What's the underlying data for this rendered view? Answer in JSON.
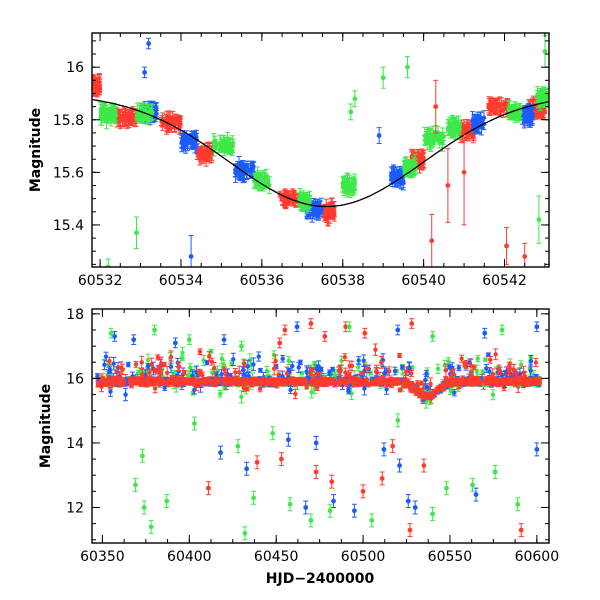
{
  "chart_data": [
    {
      "type": "scatter",
      "title": "",
      "xlabel": "",
      "ylabel": "Magnitude",
      "xlim": [
        60531.8,
        60543.1
      ],
      "ylim": [
        16.13,
        15.24
      ],
      "y_inverted": true,
      "grid": false,
      "legend": "none",
      "x_ticks": [
        60532,
        60534,
        60536,
        60538,
        60540,
        60542
      ],
      "y_ticks": [
        15.4,
        15.6,
        15.8,
        16
      ],
      "y_tick_labels": [
        "15.4",
        "15.6",
        "15.8",
        "16"
      ],
      "model_curve": {
        "name": "",
        "color": "#000000",
        "peak_x": 60537.6,
        "peak_y": 15.47,
        "base_y": 15.9,
        "width_days": 2.4
      },
      "series": [
        {
          "name": "",
          "color": "#ff3b2e",
          "clusters": [
            {
              "x0": 60531.8,
              "x1": 60532.0,
              "y": 15.93
            },
            {
              "x0": 60532.4,
              "x1": 60532.9,
              "y": 15.81
            },
            {
              "x0": 60533.5,
              "x1": 60534.0,
              "y": 15.79
            },
            {
              "x0": 60534.4,
              "x1": 60534.8,
              "y": 15.67
            },
            {
              "x0": 60536.4,
              "x1": 60536.9,
              "y": 15.5
            },
            {
              "x0": 60537.5,
              "x1": 60537.8,
              "y": 15.45
            },
            {
              "x0": 60539.7,
              "x1": 60540.0,
              "y": 15.65
            },
            {
              "x0": 60540.9,
              "x1": 60541.3,
              "y": 15.76
            },
            {
              "x0": 60541.6,
              "x1": 60542.1,
              "y": 15.85
            },
            {
              "x0": 60542.6,
              "x1": 60543.0,
              "y": 15.84
            }
          ]
        },
        {
          "name": "",
          "color": "#1a5cff",
          "clusters": [
            {
              "x0": 60533.1,
              "x1": 60533.4,
              "y": 15.83
            },
            {
              "x0": 60534.0,
              "x1": 60534.4,
              "y": 15.72
            },
            {
              "x0": 60535.3,
              "x1": 60535.8,
              "y": 15.61
            },
            {
              "x0": 60537.1,
              "x1": 60537.5,
              "y": 15.46
            },
            {
              "x0": 60539.2,
              "x1": 60539.5,
              "y": 15.58
            },
            {
              "x0": 60541.2,
              "x1": 60541.5,
              "y": 15.79
            },
            {
              "x0": 60542.4,
              "x1": 60542.7,
              "y": 15.82
            }
          ]
        },
        {
          "name": "",
          "color": "#3ee84a",
          "clusters": [
            {
              "x0": 60532.0,
              "x1": 60532.4,
              "y": 15.82
            },
            {
              "x0": 60532.9,
              "x1": 60533.3,
              "y": 15.82
            },
            {
              "x0": 60534.8,
              "x1": 60535.3,
              "y": 15.7
            },
            {
              "x0": 60535.8,
              "x1": 60536.2,
              "y": 15.57
            },
            {
              "x0": 60536.9,
              "x1": 60537.2,
              "y": 15.49
            },
            {
              "x0": 60538.0,
              "x1": 60538.3,
              "y": 15.55
            },
            {
              "x0": 60539.5,
              "x1": 60539.8,
              "y": 15.62
            },
            {
              "x0": 60540.0,
              "x1": 60540.5,
              "y": 15.73
            },
            {
              "x0": 60540.6,
              "x1": 60540.9,
              "y": 15.77
            },
            {
              "x0": 60542.1,
              "x1": 60542.4,
              "y": 15.83
            },
            {
              "x0": 60542.8,
              "x1": 60543.1,
              "y": 15.88
            }
          ]
        }
      ],
      "outliers": [
        {
          "x": 60533.2,
          "y": 16.09,
          "color": "#1a5cff",
          "err": 0.02
        },
        {
          "x": 60533.1,
          "y": 15.98,
          "color": "#1a5cff",
          "err": 0.02
        },
        {
          "x": 60534.25,
          "y": 15.28,
          "color": "#1a5cff",
          "err": 0.08
        },
        {
          "x": 60532.9,
          "y": 15.37,
          "color": "#3ee84a",
          "err": 0.06
        },
        {
          "x": 60532.2,
          "y": 15.24,
          "color": "#3ee84a",
          "err": 0.03
        },
        {
          "x": 60538.2,
          "y": 15.83,
          "color": "#3ee84a",
          "err": 0.03
        },
        {
          "x": 60538.3,
          "y": 15.88,
          "color": "#3ee84a",
          "err": 0.03
        },
        {
          "x": 60539.0,
          "y": 15.96,
          "color": "#3ee84a",
          "err": 0.04
        },
        {
          "x": 60539.6,
          "y": 16.0,
          "color": "#3ee84a",
          "err": 0.04
        },
        {
          "x": 60540.2,
          "y": 15.34,
          "color": "#ff3b2e",
          "err": 0.1
        },
        {
          "x": 60540.3,
          "y": 15.85,
          "color": "#ff3b2e",
          "err": 0.1
        },
        {
          "x": 60540.6,
          "y": 15.55,
          "color": "#ff3b2e",
          "err": 0.14
        },
        {
          "x": 60541.0,
          "y": 15.6,
          "color": "#ff3b2e",
          "err": 0.2
        },
        {
          "x": 60542.05,
          "y": 15.32,
          "color": "#ff3b2e",
          "err": 0.07
        },
        {
          "x": 60542.5,
          "y": 15.28,
          "color": "#ff3b2e",
          "err": 0.05
        },
        {
          "x": 60542.85,
          "y": 15.42,
          "color": "#3ee84a",
          "err": 0.09
        },
        {
          "x": 60543.0,
          "y": 16.06,
          "color": "#3ee84a",
          "err": 0.06
        },
        {
          "x": 60538.9,
          "y": 15.74,
          "color": "#1a5cff",
          "err": 0.03
        }
      ]
    },
    {
      "type": "scatter",
      "title": "",
      "xlabel": "HJD−2400000",
      "ylabel": "Magnitude",
      "xlim": [
        60344,
        60607
      ],
      "ylim": [
        18.15,
        10.9
      ],
      "y_inverted": true,
      "grid": false,
      "legend": "none",
      "x_ticks": [
        60350,
        60400,
        60450,
        60500,
        60550,
        60600
      ],
      "y_ticks": [
        12,
        14,
        16,
        18
      ],
      "y_tick_labels": [
        "12",
        "14",
        "16",
        "18"
      ],
      "baseline": {
        "x0": 60347,
        "x1": 60602,
        "y": 15.9,
        "bump_x": 60537,
        "bump_y": 15.45
      },
      "series": [
        {
          "name": "",
          "color": "#ff3b2e"
        },
        {
          "name": "",
          "color": "#1a5cff"
        },
        {
          "name": "",
          "color": "#3ee84a"
        }
      ],
      "faint_outliers": [
        {
          "x": 60452,
          "y": 17.1,
          "color": "#ff3b2e"
        },
        {
          "x": 60455,
          "y": 17.5,
          "color": "#ff3b2e"
        },
        {
          "x": 60470,
          "y": 17.7,
          "color": "#ff3b2e"
        },
        {
          "x": 60478,
          "y": 17.3,
          "color": "#ff3b2e"
        },
        {
          "x": 60490,
          "y": 17.6,
          "color": "#ff3b2e"
        },
        {
          "x": 60501,
          "y": 17.4,
          "color": "#ff3b2e"
        },
        {
          "x": 60528,
          "y": 17.7,
          "color": "#ff3b2e"
        },
        {
          "x": 60357,
          "y": 17.3,
          "color": "#1a5cff"
        },
        {
          "x": 60368,
          "y": 17.2,
          "color": "#1a5cff"
        },
        {
          "x": 60392,
          "y": 17.1,
          "color": "#1a5cff"
        },
        {
          "x": 60420,
          "y": 17.2,
          "color": "#1a5cff"
        },
        {
          "x": 60462,
          "y": 17.6,
          "color": "#1a5cff"
        },
        {
          "x": 60520,
          "y": 17.5,
          "color": "#1a5cff"
        },
        {
          "x": 60570,
          "y": 17.4,
          "color": "#1a5cff"
        },
        {
          "x": 60600,
          "y": 17.6,
          "color": "#1a5cff"
        },
        {
          "x": 60355,
          "y": 17.4,
          "color": "#3ee84a"
        },
        {
          "x": 60380,
          "y": 17.5,
          "color": "#3ee84a"
        },
        {
          "x": 60400,
          "y": 17.2,
          "color": "#3ee84a"
        },
        {
          "x": 60430,
          "y": 17.0,
          "color": "#3ee84a"
        },
        {
          "x": 60492,
          "y": 17.6,
          "color": "#3ee84a"
        },
        {
          "x": 60540,
          "y": 17.3,
          "color": "#3ee84a"
        },
        {
          "x": 60580,
          "y": 17.5,
          "color": "#3ee84a"
        }
      ],
      "bright_outliers": [
        {
          "x": 60527,
          "y": 11.3,
          "color": "#ff3b2e"
        },
        {
          "x": 60591,
          "y": 11.3,
          "color": "#ff3b2e"
        },
        {
          "x": 60411,
          "y": 12.6,
          "color": "#ff3b2e"
        },
        {
          "x": 60482,
          "y": 12.8,
          "color": "#ff3b2e"
        },
        {
          "x": 60500,
          "y": 12.5,
          "color": "#ff3b2e"
        },
        {
          "x": 60511,
          "y": 12.9,
          "color": "#ff3b2e"
        },
        {
          "x": 60535,
          "y": 13.3,
          "color": "#ff3b2e"
        },
        {
          "x": 60439,
          "y": 13.4,
          "color": "#ff3b2e"
        },
        {
          "x": 60453,
          "y": 13.5,
          "color": "#ff3b2e"
        },
        {
          "x": 60473,
          "y": 13.1,
          "color": "#ff3b2e"
        },
        {
          "x": 60517,
          "y": 13.9,
          "color": "#ff3b2e"
        },
        {
          "x": 60378,
          "y": 11.4,
          "color": "#3ee84a"
        },
        {
          "x": 60374,
          "y": 12.0,
          "color": "#3ee84a"
        },
        {
          "x": 60369,
          "y": 12.7,
          "color": "#3ee84a"
        },
        {
          "x": 60387,
          "y": 12.2,
          "color": "#3ee84a"
        },
        {
          "x": 60432,
          "y": 11.2,
          "color": "#3ee84a"
        },
        {
          "x": 60437,
          "y": 12.3,
          "color": "#3ee84a"
        },
        {
          "x": 60458,
          "y": 12.1,
          "color": "#3ee84a"
        },
        {
          "x": 60470,
          "y": 11.6,
          "color": "#3ee84a"
        },
        {
          "x": 60481,
          "y": 11.9,
          "color": "#3ee84a"
        },
        {
          "x": 60505,
          "y": 11.6,
          "color": "#3ee84a"
        },
        {
          "x": 60540,
          "y": 11.8,
          "color": "#3ee84a"
        },
        {
          "x": 60548,
          "y": 12.6,
          "color": "#3ee84a"
        },
        {
          "x": 60563,
          "y": 12.7,
          "color": "#3ee84a"
        },
        {
          "x": 60589,
          "y": 12.1,
          "color": "#3ee84a"
        },
        {
          "x": 60576,
          "y": 13.1,
          "color": "#3ee84a"
        },
        {
          "x": 60428,
          "y": 13.9,
          "color": "#3ee84a"
        },
        {
          "x": 60448,
          "y": 14.3,
          "color": "#3ee84a"
        },
        {
          "x": 60373,
          "y": 13.6,
          "color": "#3ee84a"
        },
        {
          "x": 60403,
          "y": 14.6,
          "color": "#3ee84a"
        },
        {
          "x": 60520,
          "y": 14.7,
          "color": "#3ee84a"
        },
        {
          "x": 60467,
          "y": 12.0,
          "color": "#1a5cff"
        },
        {
          "x": 60495,
          "y": 11.9,
          "color": "#1a5cff"
        },
        {
          "x": 60526,
          "y": 12.2,
          "color": "#1a5cff"
        },
        {
          "x": 60565,
          "y": 12.4,
          "color": "#1a5cff"
        },
        {
          "x": 60530,
          "y": 12.0,
          "color": "#1a5cff"
        },
        {
          "x": 60418,
          "y": 13.7,
          "color": "#1a5cff"
        },
        {
          "x": 60433,
          "y": 13.2,
          "color": "#1a5cff"
        },
        {
          "x": 60457,
          "y": 14.1,
          "color": "#1a5cff"
        },
        {
          "x": 60483,
          "y": 12.2,
          "color": "#1a5cff"
        },
        {
          "x": 60512,
          "y": 13.8,
          "color": "#1a5cff"
        },
        {
          "x": 60600,
          "y": 13.8,
          "color": "#1a5cff"
        },
        {
          "x": 60473,
          "y": 14.0,
          "color": "#1a5cff"
        },
        {
          "x": 60521,
          "y": 13.3,
          "color": "#1a5cff"
        }
      ]
    }
  ]
}
